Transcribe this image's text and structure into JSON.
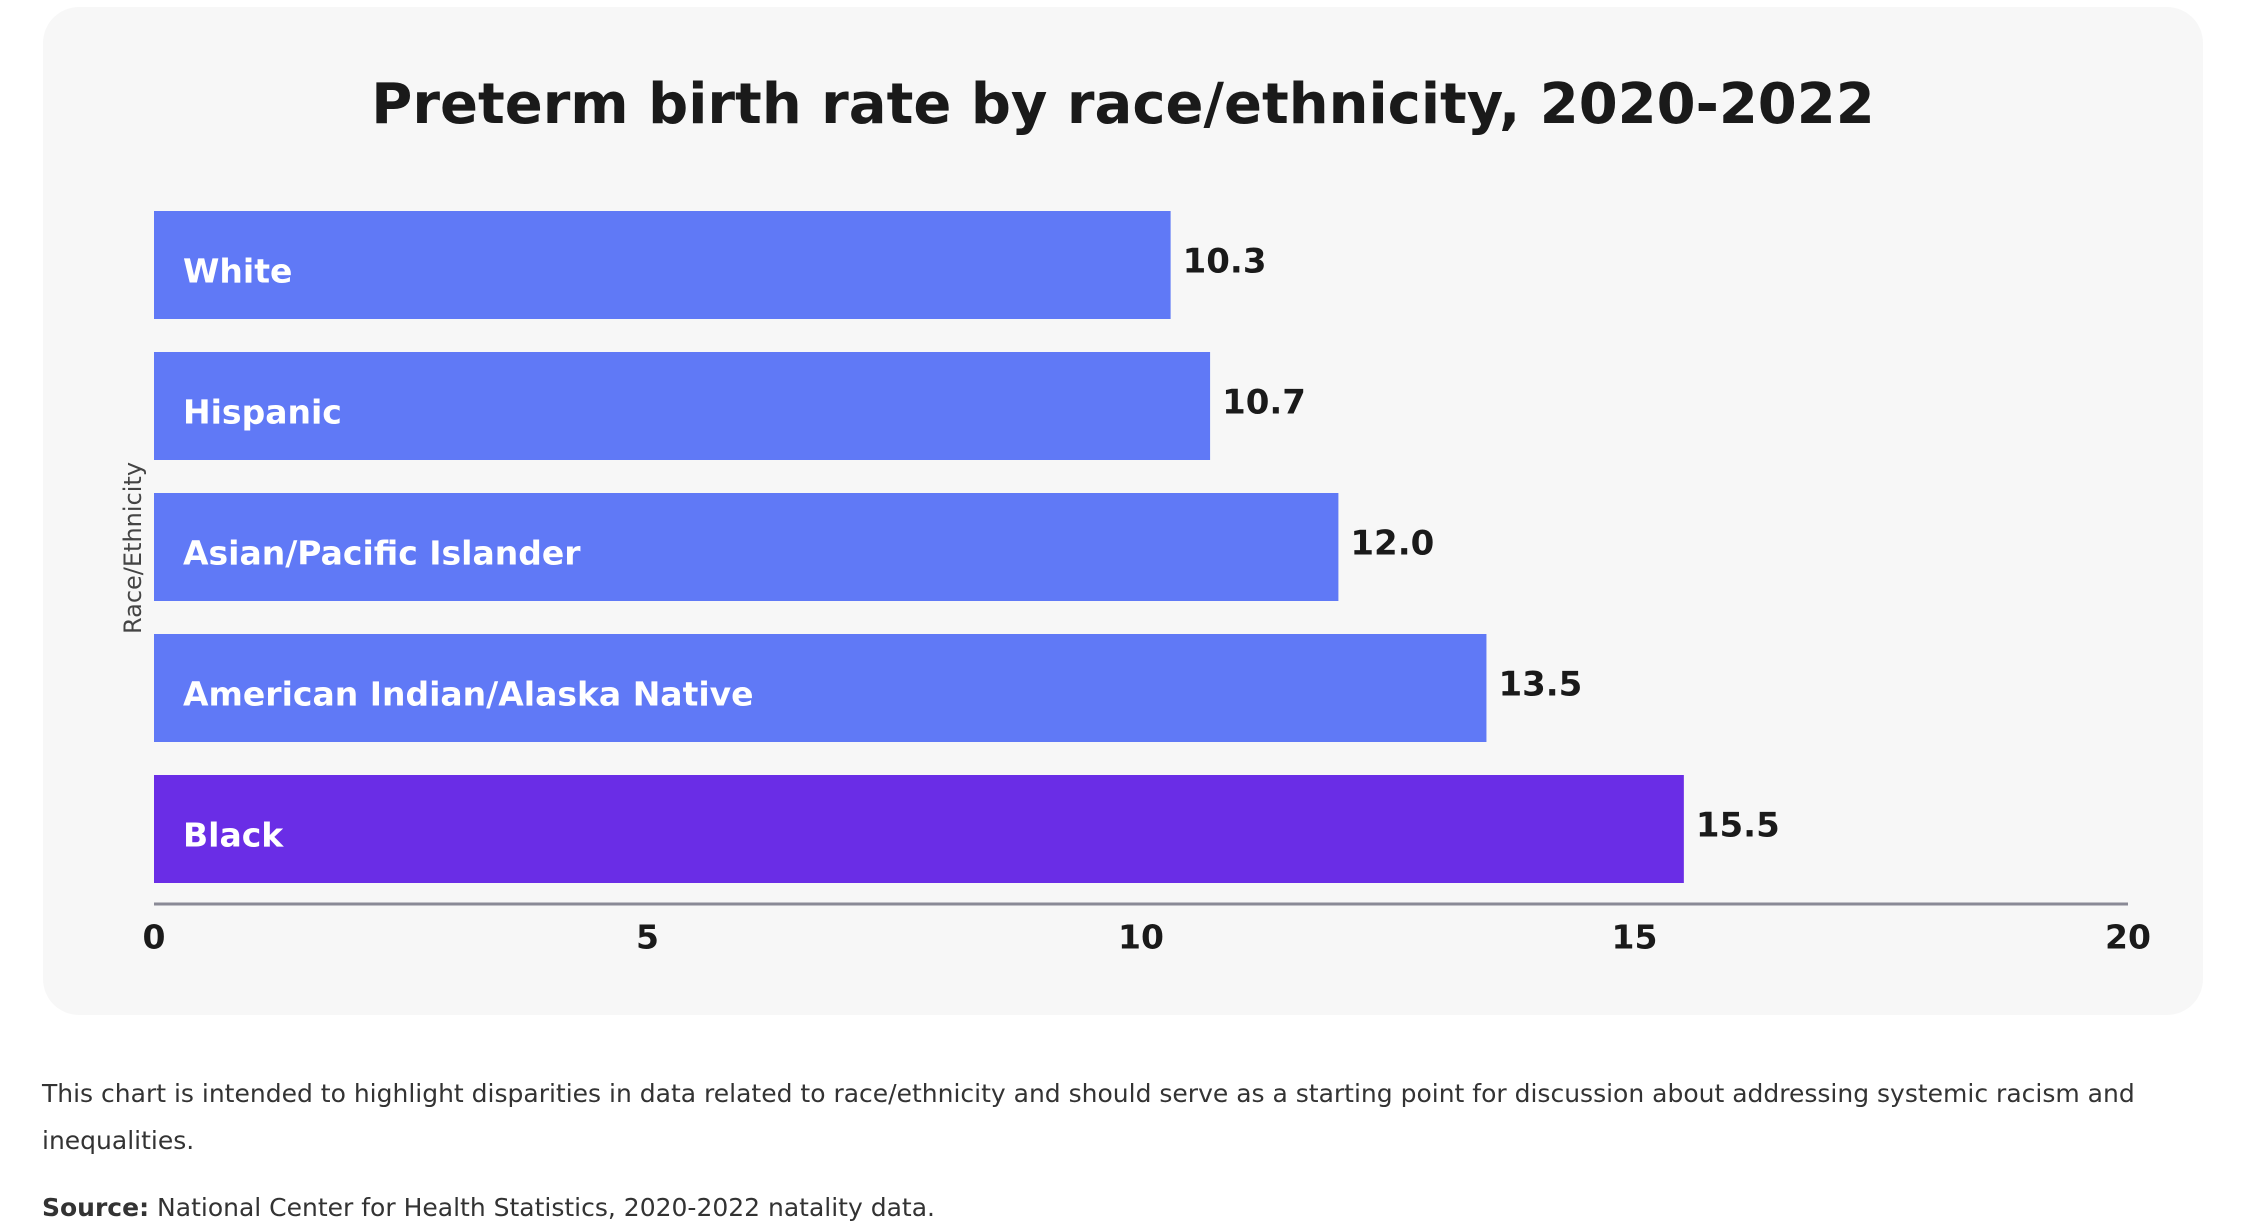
{
  "chart_data": {
    "type": "bar",
    "orientation": "horizontal",
    "title": "Preterm birth rate by race/ethnicity, 2020-2022",
    "y_label": "Race/Ethnicity",
    "categories": [
      "White",
      "Hispanic",
      "Asian/Pacific Islander",
      "American Indian/Alaska Native",
      "Black"
    ],
    "values": [
      10.3,
      10.7,
      12.0,
      13.5,
      15.5
    ],
    "value_labels": [
      "10.3",
      "10.7",
      "12.0",
      "13.5",
      "15.5"
    ],
    "colors": [
      "#6079f6",
      "#6079f6",
      "#6079f6",
      "#6079f6",
      "#6a2de6"
    ],
    "xlim": [
      0,
      20
    ],
    "xticks": [
      0,
      5,
      10,
      15,
      20
    ]
  },
  "footer": {
    "note": "This chart is intended to highlight disparities in data related to race/ethnicity and should serve as a starting point for discussion about addressing systemic racism and inequalities.",
    "source_label": "Source:",
    "source": "National Center for Health Statistics, 2020-2022 natality data."
  }
}
